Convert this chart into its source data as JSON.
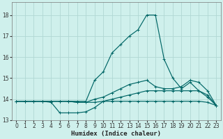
{
  "xlabel": "Humidex (Indice chaleur)",
  "bg_color": "#cff0ec",
  "grid_color": "#b0d8d4",
  "line_color": "#006666",
  "xlim": [
    -0.5,
    23.5
  ],
  "ylim": [
    13.0,
    18.6
  ],
  "yticks": [
    13,
    14,
    15,
    16,
    17,
    18
  ],
  "xticks": [
    0,
    1,
    2,
    3,
    4,
    5,
    6,
    7,
    8,
    9,
    10,
    11,
    12,
    13,
    14,
    15,
    16,
    17,
    18,
    19,
    20,
    21,
    22,
    23
  ],
  "series": [
    {
      "x": [
        0,
        1,
        2,
        3,
        4,
        5,
        6,
        7,
        8,
        9,
        10,
        11,
        12,
        13,
        14,
        15,
        16,
        17,
        18,
        19,
        20,
        21,
        22,
        23
      ],
      "y": [
        13.9,
        13.9,
        13.9,
        13.9,
        13.9,
        13.9,
        13.9,
        13.9,
        13.9,
        14.9,
        15.3,
        16.2,
        16.6,
        17.0,
        17.3,
        18.0,
        18.0,
        15.9,
        15.0,
        14.5,
        14.8,
        14.4,
        14.1,
        13.7
      ]
    },
    {
      "x": [
        0,
        1,
        2,
        3,
        4,
        5,
        6,
        7,
        8,
        9,
        10,
        11,
        12,
        13,
        14,
        15,
        16,
        17,
        18,
        19,
        20,
        21,
        22,
        23
      ],
      "y": [
        13.9,
        13.9,
        13.9,
        13.9,
        13.9,
        13.9,
        13.9,
        13.85,
        13.85,
        14.0,
        14.1,
        14.3,
        14.5,
        14.7,
        14.8,
        14.9,
        14.6,
        14.5,
        14.5,
        14.6,
        14.9,
        14.8,
        14.4,
        13.7
      ]
    },
    {
      "x": [
        0,
        1,
        2,
        3,
        4,
        5,
        6,
        7,
        8,
        9,
        10,
        11,
        12,
        13,
        14,
        15,
        16,
        17,
        18,
        19,
        20,
        21,
        22,
        23
      ],
      "y": [
        13.9,
        13.9,
        13.9,
        13.9,
        13.85,
        13.35,
        13.35,
        13.35,
        13.4,
        13.6,
        13.9,
        14.0,
        14.1,
        14.2,
        14.3,
        14.4,
        14.4,
        14.4,
        14.4,
        14.4,
        14.4,
        14.4,
        14.2,
        13.7
      ]
    },
    {
      "x": [
        0,
        1,
        2,
        3,
        4,
        5,
        6,
        7,
        8,
        9,
        10,
        11,
        12,
        13,
        14,
        15,
        16,
        17,
        18,
        19,
        20,
        21,
        22,
        23
      ],
      "y": [
        13.9,
        13.9,
        13.9,
        13.9,
        13.9,
        13.9,
        13.9,
        13.85,
        13.85,
        13.85,
        13.9,
        13.9,
        13.9,
        13.9,
        13.9,
        13.9,
        13.9,
        13.9,
        13.9,
        13.9,
        13.9,
        13.9,
        13.85,
        13.7
      ]
    }
  ]
}
